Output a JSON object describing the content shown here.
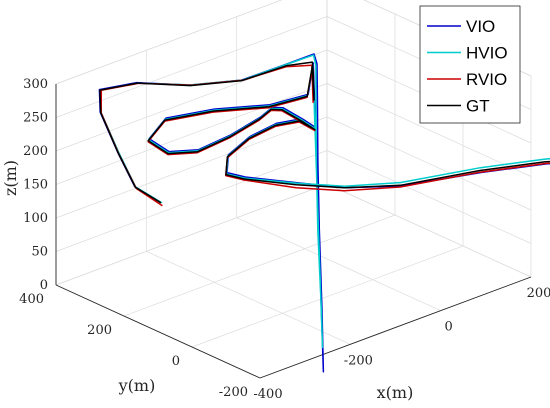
{
  "chart_data": {
    "type": "line3d",
    "title": "",
    "xlabel": "x(m)",
    "ylabel": "y(m)",
    "zlabel": "z(m)",
    "xlim": [
      -400,
      200
    ],
    "ylim": [
      -200,
      400
    ],
    "zlim": [
      0,
      300
    ],
    "x_ticks": [
      "-400",
      "-200",
      "0",
      "200"
    ],
    "y_ticks": [
      "-200",
      "0",
      "200",
      "400"
    ],
    "z_ticks": [
      "0",
      "50",
      "100",
      "150",
      "200",
      "250",
      "300"
    ],
    "grid": true,
    "legend": {
      "position": "top-right"
    },
    "series": [
      {
        "name": "VIO",
        "color": "#0000cc",
        "points": [
          [
            -322,
            196,
            151
          ],
          [
            -376,
            200,
            187
          ],
          [
            -395,
            225,
            237
          ],
          [
            -400,
            270,
            288
          ],
          [
            -355,
            332,
            296
          ],
          [
            -255,
            355,
            276
          ],
          [
            -145,
            345,
            247
          ],
          [
            -42,
            330,
            232
          ],
          [
            48,
            318,
            236
          ],
          [
            102,
            308,
            240
          ],
          [
            104,
            302,
            226
          ],
          [
            96,
            290,
            180
          ],
          [
            82,
            270,
            90
          ],
          [
            70,
            250,
            0
          ],
          [
            55,
            222,
            -110
          ],
          [
            43,
            202,
            -195
          ],
          [
            102,
            310,
            226
          ],
          [
            62,
            272,
            198
          ],
          [
            -30,
            262,
            208
          ],
          [
            -140,
            280,
            225
          ],
          [
            -232,
            300,
            230
          ],
          [
            -275,
            292,
            212
          ],
          [
            -255,
            260,
            195
          ],
          [
            -205,
            240,
            190
          ],
          [
            -135,
            238,
            195
          ],
          [
            -68,
            240,
            204
          ],
          [
            -38,
            245,
            210
          ],
          [
            -15,
            244,
            204
          ],
          [
            20,
            232,
            181
          ],
          [
            40,
            220,
            166
          ],
          [
            10,
            226,
            185
          ],
          [
            -40,
            230,
            190
          ],
          [
            -100,
            228,
            186
          ],
          [
            -150,
            225,
            172
          ],
          [
            -160,
            216,
            150
          ],
          [
            -128,
            205,
            138
          ],
          [
            -30,
            182,
            110
          ],
          [
            60,
            160,
            85
          ],
          [
            160,
            128,
            70
          ],
          [
            300,
            80,
            66
          ],
          [
            405,
            30,
            64
          ],
          [
            470,
            -10,
            62
          ]
        ]
      },
      {
        "name": "HVIO",
        "color": "#00cccc",
        "points": [
          [
            -320,
            195,
            150
          ],
          [
            -374,
            200,
            186
          ],
          [
            -393,
            224,
            236
          ],
          [
            -398,
            270,
            287
          ],
          [
            -353,
            331,
            295
          ],
          [
            -253,
            354,
            275
          ],
          [
            -143,
            344,
            247
          ],
          [
            -40,
            329,
            232
          ],
          [
            50,
            317,
            236
          ],
          [
            100,
            307,
            239
          ],
          [
            101,
            301,
            225
          ],
          [
            92,
            289,
            180
          ],
          [
            78,
            269,
            90
          ],
          [
            66,
            249,
            0
          ],
          [
            52,
            220,
            -110
          ],
          [
            44,
            206,
            -160
          ],
          [
            100,
            309,
            225
          ],
          [
            60,
            271,
            197
          ],
          [
            -32,
            261,
            207
          ],
          [
            -142,
            279,
            224
          ],
          [
            -234,
            299,
            229
          ],
          [
            -277,
            291,
            211
          ],
          [
            -257,
            259,
            194
          ],
          [
            -207,
            239,
            189
          ],
          [
            -137,
            237,
            194
          ],
          [
            -70,
            239,
            203
          ],
          [
            -40,
            244,
            209
          ],
          [
            -17,
            243,
            203
          ],
          [
            18,
            231,
            180
          ],
          [
            38,
            219,
            165
          ],
          [
            8,
            225,
            184
          ],
          [
            -42,
            229,
            189
          ],
          [
            -102,
            227,
            185
          ],
          [
            -152,
            224,
            171
          ],
          [
            -162,
            215,
            149
          ],
          [
            -130,
            204,
            137
          ],
          [
            -32,
            181,
            110
          ],
          [
            58,
            159,
            88
          ],
          [
            158,
            127,
            76
          ],
          [
            298,
            79,
            74
          ],
          [
            403,
            29,
            72
          ],
          [
            468,
            -11,
            70
          ]
        ]
      },
      {
        "name": "RVIO",
        "color": "#cc0000",
        "points": [
          [
            -318,
            196,
            145
          ],
          [
            -372,
            201,
            183
          ],
          [
            -392,
            226,
            234
          ],
          [
            -397,
            271,
            286
          ],
          [
            -351,
            332,
            294
          ],
          [
            -251,
            355,
            274
          ],
          [
            -141,
            345,
            246
          ],
          [
            -38,
            330,
            231
          ],
          [
            46,
            316,
            233
          ],
          [
            94,
            304,
            226
          ],
          [
            92,
            300,
            212
          ],
          [
            88,
            292,
            175
          ],
          [
            98,
            308,
            220
          ],
          [
            58,
            270,
            195
          ],
          [
            -34,
            260,
            205
          ],
          [
            -144,
            278,
            222
          ],
          [
            -236,
            298,
            227
          ],
          [
            -279,
            290,
            209
          ],
          [
            -259,
            258,
            192
          ],
          [
            -209,
            238,
            187
          ],
          [
            -139,
            236,
            192
          ],
          [
            -72,
            238,
            201
          ],
          [
            -42,
            243,
            207
          ],
          [
            -19,
            242,
            201
          ],
          [
            16,
            230,
            178
          ],
          [
            36,
            218,
            163
          ],
          [
            6,
            224,
            182
          ],
          [
            -44,
            228,
            187
          ],
          [
            -104,
            226,
            183
          ],
          [
            -154,
            223,
            169
          ],
          [
            -164,
            214,
            147
          ],
          [
            -132,
            203,
            135
          ],
          [
            -34,
            180,
            104
          ],
          [
            56,
            158,
            82
          ],
          [
            156,
            126,
            70
          ],
          [
            296,
            78,
            68
          ],
          [
            401,
            28,
            66
          ],
          [
            466,
            -12,
            64
          ]
        ]
      },
      {
        "name": "GT",
        "color": "#000000",
        "points": [
          [
            -321,
            196,
            150
          ],
          [
            -375,
            200,
            186
          ],
          [
            -394,
            225,
            236
          ],
          [
            -399,
            270,
            287
          ],
          [
            -354,
            332,
            295
          ],
          [
            -254,
            355,
            275
          ],
          [
            -144,
            345,
            246
          ],
          [
            -41,
            330,
            231
          ],
          [
            47,
            317,
            234
          ],
          [
            96,
            305,
            230
          ],
          [
            95,
            301,
            216
          ],
          [
            90,
            292,
            178
          ],
          [
            99,
            309,
            222
          ],
          [
            59,
            271,
            196
          ],
          [
            -33,
            261,
            206
          ],
          [
            -143,
            279,
            223
          ],
          [
            -235,
            299,
            228
          ],
          [
            -278,
            291,
            210
          ],
          [
            -258,
            259,
            193
          ],
          [
            -208,
            239,
            188
          ],
          [
            -138,
            237,
            193
          ],
          [
            -71,
            239,
            202
          ],
          [
            -41,
            244,
            208
          ],
          [
            -18,
            243,
            202
          ],
          [
            17,
            231,
            179
          ],
          [
            37,
            219,
            164
          ],
          [
            7,
            225,
            183
          ],
          [
            -43,
            229,
            188
          ],
          [
            -103,
            227,
            184
          ],
          [
            -153,
            224,
            170
          ],
          [
            -163,
            215,
            148
          ],
          [
            -131,
            204,
            136
          ],
          [
            -33,
            181,
            108
          ],
          [
            57,
            159,
            86
          ],
          [
            157,
            127,
            72
          ],
          [
            297,
            79,
            70
          ],
          [
            402,
            29,
            68
          ],
          [
            467,
            -11,
            66
          ]
        ]
      }
    ]
  }
}
